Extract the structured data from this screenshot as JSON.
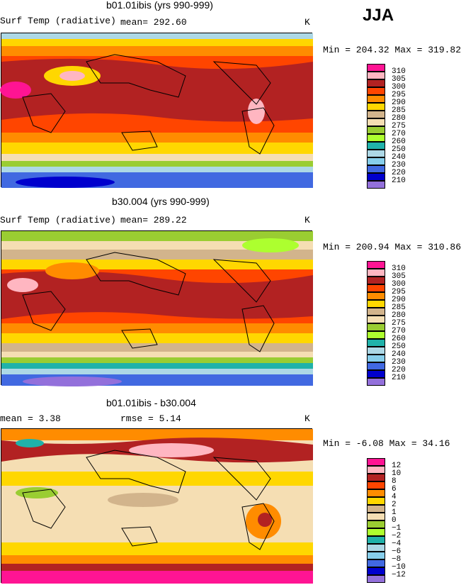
{
  "season": "JJA",
  "panels": [
    {
      "title": "b01.01ibis (yrs 990-999)",
      "left_text": "Surf Temp (radiative)",
      "mid_text": "mean= 292.60",
      "units": "K",
      "minmax": "Min = 204.32 Max = 319.82",
      "legend": {
        "colors": [
          "#ff1493",
          "#ffb6c1",
          "#b22222",
          "#ff4500",
          "#ff8c00",
          "#ffd700",
          "#d2b48c",
          "#f5deb3",
          "#9acd32",
          "#adff2f",
          "#20b2aa",
          "#add8e6",
          "#87ceeb",
          "#4169e1",
          "#0000cd",
          "#9370db"
        ],
        "labels": [
          "310",
          "305",
          "300",
          "295",
          "290",
          "285",
          "280",
          "275",
          "270",
          "260",
          "250",
          "240",
          "230",
          "220",
          "210"
        ]
      }
    },
    {
      "title": "b30.004 (yrs 990-999)",
      "left_text": "Surf Temp (radiative)",
      "mid_text": "mean= 289.22",
      "units": "K",
      "minmax": "Min = 200.94 Max = 310.86",
      "legend": {
        "colors": [
          "#ff1493",
          "#ffb6c1",
          "#b22222",
          "#ff4500",
          "#ff8c00",
          "#ffd700",
          "#d2b48c",
          "#f5deb3",
          "#9acd32",
          "#adff2f",
          "#20b2aa",
          "#add8e6",
          "#87ceeb",
          "#4169e1",
          "#0000cd",
          "#9370db"
        ],
        "labels": [
          "310",
          "305",
          "300",
          "295",
          "290",
          "285",
          "280",
          "275",
          "270",
          "260",
          "250",
          "240",
          "230",
          "220",
          "210"
        ]
      }
    },
    {
      "title": "b01.01ibis - b30.004",
      "left_text": "mean =    3.38",
      "mid_text": "rmse =    5.14",
      "units": "K",
      "minmax": "Min =   -6.08 Max =   34.16",
      "legend": {
        "colors": [
          "#ff1493",
          "#ffb6c1",
          "#b22222",
          "#ff4500",
          "#ff8c00",
          "#ffd700",
          "#d2b48c",
          "#f5deb3",
          "#9acd32",
          "#adff2f",
          "#20b2aa",
          "#add8e6",
          "#87ceeb",
          "#4169e1",
          "#0000cd",
          "#9370db"
        ],
        "labels": [
          "12",
          "10",
          "8",
          "6",
          "4",
          "2",
          "1",
          "0",
          "−1",
          "−2",
          "−4",
          "−6",
          "−8",
          "−10",
          "−12"
        ]
      }
    }
  ]
}
